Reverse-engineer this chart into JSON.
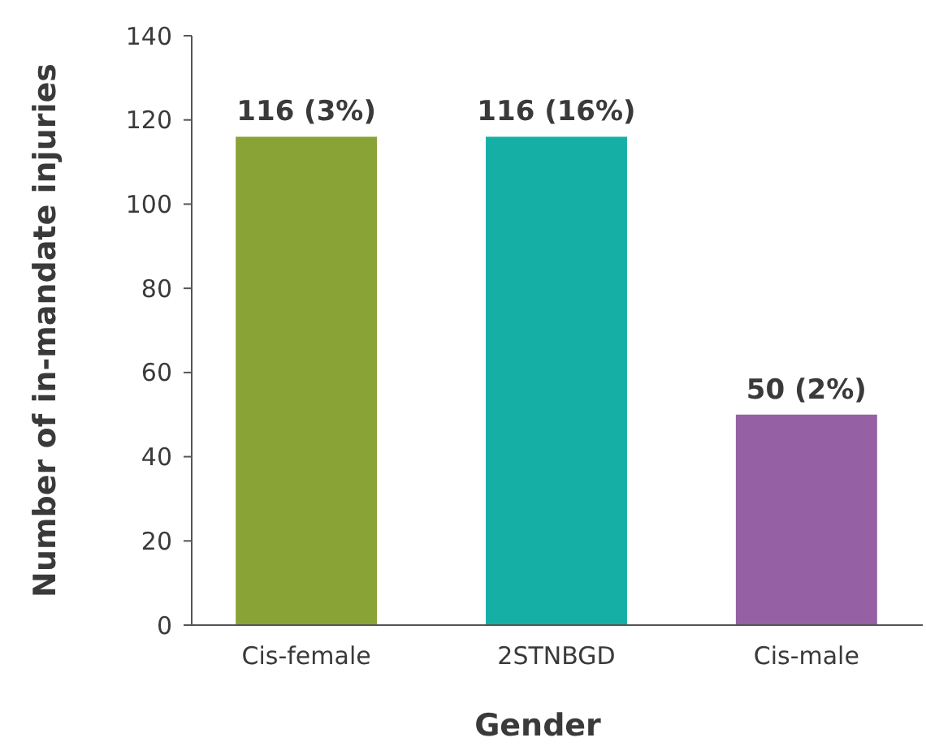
{
  "chart_data": {
    "type": "bar",
    "xlabel": "Gender",
    "ylabel": "Number of in-mandate injuries",
    "categories": [
      "Cis-female",
      "2STNBGD",
      "Cis-male"
    ],
    "values": [
      116,
      116,
      50
    ],
    "colors": [
      "#8aa336",
      "#16afa5",
      "#9660a5"
    ],
    "value_labels": [
      "116 (3%)",
      "116 (16%)",
      "50 (2%)"
    ],
    "ylim": [
      0,
      140
    ],
    "yticks": [
      0,
      20,
      40,
      60,
      80,
      100,
      120,
      140
    ],
    "grid": false
  }
}
